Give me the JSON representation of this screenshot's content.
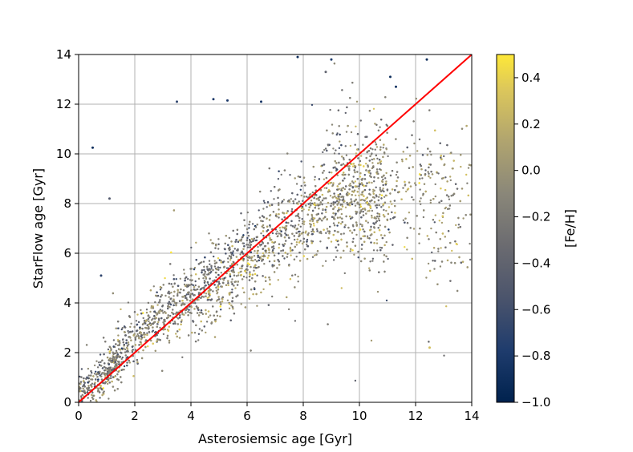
{
  "chart_data": {
    "type": "scatter",
    "xlabel": "Asterosiemsic age [Gyr]",
    "ylabel": "StarFlow age [Gyr]",
    "xlim": [
      0,
      14
    ],
    "ylim": [
      0,
      14
    ],
    "x_ticks": [
      "0",
      "2",
      "4",
      "6",
      "8",
      "10",
      "12",
      "14"
    ],
    "y_ticks": [
      "0",
      "2",
      "4",
      "6",
      "8",
      "10",
      "12",
      "14"
    ],
    "grid": true,
    "colorbar": {
      "label": "[Fe/H]",
      "range": [
        -1.0,
        0.5
      ],
      "ticks": [
        "−1.0",
        "−0.8",
        "−0.6",
        "−0.4",
        "−0.2",
        "0.0",
        "0.2",
        "0.4"
      ],
      "tick_values": [
        -1.0,
        -0.8,
        -0.6,
        -0.4,
        -0.2,
        0.0,
        0.2,
        0.4
      ],
      "colormap": "cividis"
    },
    "reference_line": {
      "x": [
        0,
        14
      ],
      "y": [
        0,
        14
      ],
      "color": "#ff0000"
    },
    "point_cloud": {
      "approximate_count": 12000,
      "trend_x": [
        0.5,
        1,
        2,
        3,
        4,
        5,
        6,
        7,
        8,
        9,
        10,
        11,
        12,
        13,
        14
      ],
      "trend_median_y": [
        0.6,
        1.2,
        2.6,
        3.6,
        4.2,
        4.9,
        5.8,
        6.7,
        7.6,
        8.2,
        8.4,
        8.3,
        8.2,
        8.0,
        7.5
      ]
    },
    "outliers": [
      {
        "x": 0.5,
        "y": 10.25,
        "feh": -0.9
      },
      {
        "x": 3.5,
        "y": 12.1,
        "feh": -0.7
      },
      {
        "x": 4.8,
        "y": 12.2,
        "feh": -0.8
      },
      {
        "x": 5.3,
        "y": 12.15,
        "feh": -0.8
      },
      {
        "x": 6.5,
        "y": 12.1,
        "feh": -0.85
      },
      {
        "x": 7.8,
        "y": 13.9,
        "feh": -0.9
      },
      {
        "x": 8.8,
        "y": 13.3,
        "feh": -0.4
      },
      {
        "x": 9.0,
        "y": 13.8,
        "feh": -0.8
      },
      {
        "x": 11.1,
        "y": 13.1,
        "feh": -0.9
      },
      {
        "x": 11.3,
        "y": 12.7,
        "feh": -0.85
      },
      {
        "x": 12.4,
        "y": 13.8,
        "feh": -0.9
      },
      {
        "x": 12.5,
        "y": 2.2,
        "feh": 0.3
      },
      {
        "x": 1.1,
        "y": 8.2,
        "feh": -0.5
      },
      {
        "x": 0.8,
        "y": 5.1,
        "feh": -0.7
      }
    ]
  }
}
